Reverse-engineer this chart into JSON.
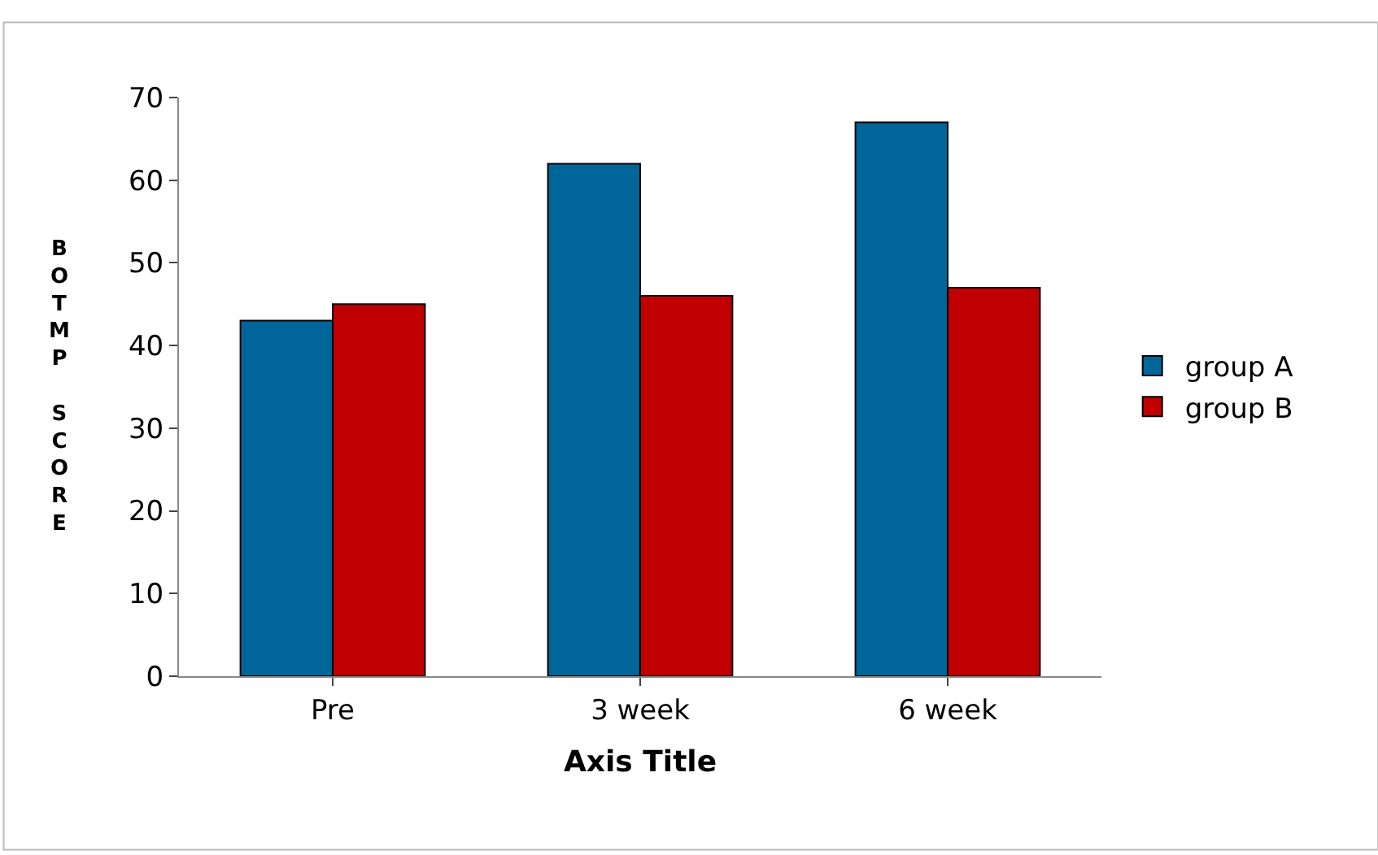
{
  "chart_data": {
    "type": "bar",
    "xlabel": "Axis Title",
    "ylabel": "BOTMP SCORE",
    "categories": [
      "Pre",
      "3 week",
      "6 week"
    ],
    "series": [
      {
        "name": "group A",
        "color": "#006699",
        "values": [
          43,
          62,
          67
        ]
      },
      {
        "name": "group B",
        "color": "#c00000",
        "values": [
          45,
          46,
          47
        ]
      }
    ],
    "ylim": [
      0,
      70
    ],
    "yticks": [
      0,
      10,
      20,
      30,
      40,
      50,
      60,
      70
    ],
    "legend": "right"
  }
}
